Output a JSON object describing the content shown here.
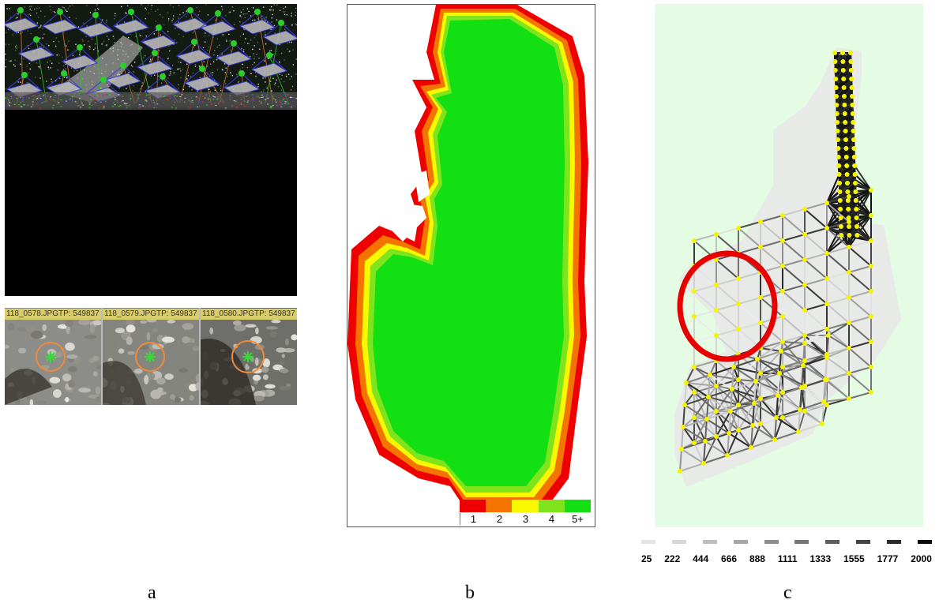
{
  "panels": {
    "a": {
      "caption": "a",
      "thumbnails": [
        {
          "label": "118_0578.JPGTP: 549837"
        },
        {
          "label": "118_0579.JPGTP: 549837"
        },
        {
          "label": "118_0580.JPGTP: 549837"
        }
      ]
    },
    "b": {
      "caption": "b",
      "legend": {
        "labels": [
          "1",
          "2",
          "3",
          "4",
          "5+"
        ],
        "colors": [
          "#ef0000",
          "#f47400",
          "#f8f800",
          "#80e41c",
          "#12e012"
        ]
      }
    },
    "c": {
      "caption": "c",
      "background_color": "#e4fbe4",
      "highlight_color": "#e60000",
      "node_color": "#f5f500",
      "legend": {
        "labels": [
          "25",
          "222",
          "444",
          "666",
          "888",
          "1111",
          "1333",
          "1555",
          "1777",
          "2000"
        ],
        "shades": [
          "#e4e4e4",
          "#d6d6d6",
          "#bdbdbd",
          "#a6a6a6",
          "#8e8e8e",
          "#767676",
          "#5e5e5e",
          "#444444",
          "#2a2a2a",
          "#0a0a0a"
        ]
      }
    }
  }
}
